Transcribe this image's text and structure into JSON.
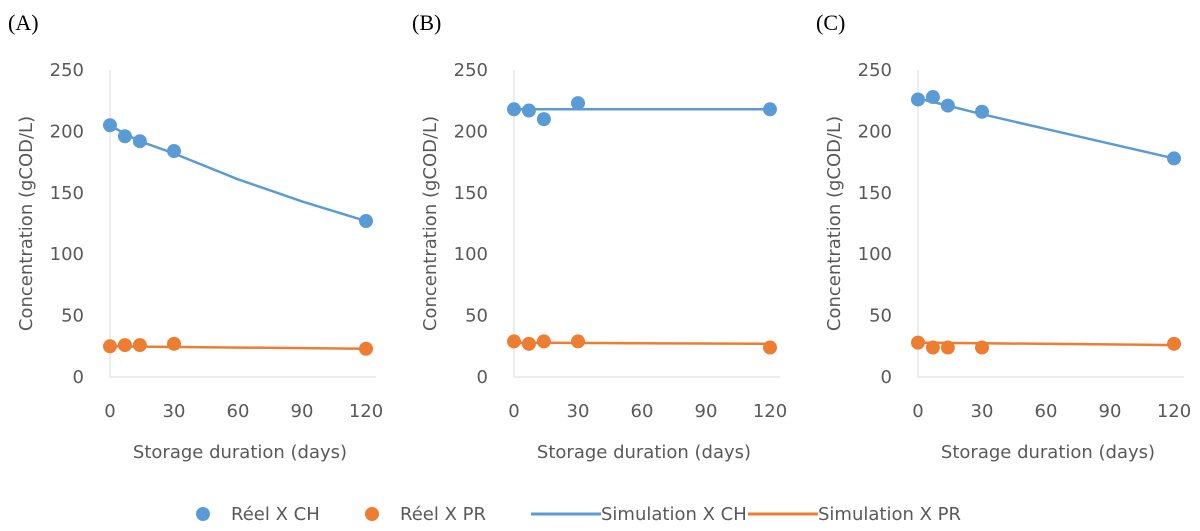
{
  "chart_data": [
    {
      "type": "line",
      "panel_label": "(A)",
      "xlabel": "Storage duration (days)",
      "ylabel": "Concentration (gCOD/L)",
      "xlim": [
        0,
        120
      ],
      "ylim": [
        0,
        250
      ],
      "x_ticks": [
        0,
        30,
        60,
        90,
        120
      ],
      "y_ticks": [
        0,
        50,
        100,
        150,
        200,
        250
      ],
      "grid": false,
      "series": [
        {
          "name": "Réel X CH",
          "kind": "scatter",
          "color": "#5B9BD5",
          "x": [
            0,
            7,
            14,
            30,
            120
          ],
          "y": [
            205,
            196,
            192,
            184,
            127
          ]
        },
        {
          "name": "Réel X PR",
          "kind": "scatter",
          "color": "#ED7D31",
          "x": [
            0,
            7,
            14,
            30,
            120
          ],
          "y": [
            25,
            26,
            26,
            27,
            23
          ]
        },
        {
          "name": "Simulation X CH",
          "kind": "line",
          "color": "#5B9BD5",
          "x": [
            0,
            7,
            14,
            30,
            60,
            90,
            120
          ],
          "y": [
            205,
            198,
            192,
            182,
            161,
            143,
            127
          ]
        },
        {
          "name": "Simulation X PR",
          "kind": "line",
          "color": "#ED7D31",
          "x": [
            0,
            120
          ],
          "y": [
            25,
            23
          ]
        }
      ]
    },
    {
      "type": "line",
      "panel_label": "(B)",
      "xlabel": "Storage duration (days)",
      "ylabel": "Concentration (gCOD/L)",
      "xlim": [
        0,
        120
      ],
      "ylim": [
        0,
        250
      ],
      "x_ticks": [
        0,
        30,
        60,
        90,
        120
      ],
      "y_ticks": [
        0,
        50,
        100,
        150,
        200,
        250
      ],
      "grid": false,
      "series": [
        {
          "name": "Réel X CH",
          "kind": "scatter",
          "color": "#5B9BD5",
          "x": [
            0,
            7,
            14,
            30,
            120
          ],
          "y": [
            218,
            217,
            210,
            223,
            218
          ]
        },
        {
          "name": "Réel X PR",
          "kind": "scatter",
          "color": "#ED7D31",
          "x": [
            0,
            7,
            14,
            30,
            120
          ],
          "y": [
            29,
            27,
            29,
            29,
            24
          ]
        },
        {
          "name": "Simulation X CH",
          "kind": "line",
          "color": "#5B9BD5",
          "x": [
            0,
            120
          ],
          "y": [
            218,
            218
          ]
        },
        {
          "name": "Simulation X PR",
          "kind": "line",
          "color": "#ED7D31",
          "x": [
            0,
            120
          ],
          "y": [
            28,
            27
          ]
        }
      ]
    },
    {
      "type": "line",
      "panel_label": "(C)",
      "xlabel": "Storage duration (days)",
      "ylabel": "Concentration (gCOD/L)",
      "xlim": [
        0,
        120
      ],
      "ylim": [
        0,
        250
      ],
      "x_ticks": [
        0,
        30,
        60,
        90,
        120
      ],
      "y_ticks": [
        0,
        50,
        100,
        150,
        200,
        250
      ],
      "grid": false,
      "series": [
        {
          "name": "Réel X CH",
          "kind": "scatter",
          "color": "#5B9BD5",
          "x": [
            0,
            7,
            14,
            30,
            120
          ],
          "y": [
            226,
            228,
            221,
            216,
            178
          ]
        },
        {
          "name": "Réel X PR",
          "kind": "scatter",
          "color": "#ED7D31",
          "x": [
            0,
            7,
            14,
            30,
            120
          ],
          "y": [
            28,
            24,
            24,
            24,
            27
          ]
        },
        {
          "name": "Simulation X CH",
          "kind": "line",
          "color": "#5B9BD5",
          "x": [
            0,
            30,
            60,
            90,
            120
          ],
          "y": [
            227,
            214,
            202,
            190,
            178
          ]
        },
        {
          "name": "Simulation X PR",
          "kind": "line",
          "color": "#ED7D31",
          "x": [
            0,
            120
          ],
          "y": [
            28,
            26
          ]
        }
      ]
    }
  ],
  "legend": {
    "placement": "bottom-center",
    "items": [
      {
        "label": "Réel X CH",
        "marker": "dot",
        "color": "#5B9BD5"
      },
      {
        "label": "Réel X PR",
        "marker": "dot",
        "color": "#ED7D31"
      },
      {
        "label": "Simulation X CH",
        "marker": "line",
        "color": "#5B9BD5"
      },
      {
        "label": "Simulation X PR",
        "marker": "line",
        "color": "#ED7D31"
      }
    ]
  },
  "colors": {
    "axis": "#D9D9D9",
    "text": "#595959"
  }
}
